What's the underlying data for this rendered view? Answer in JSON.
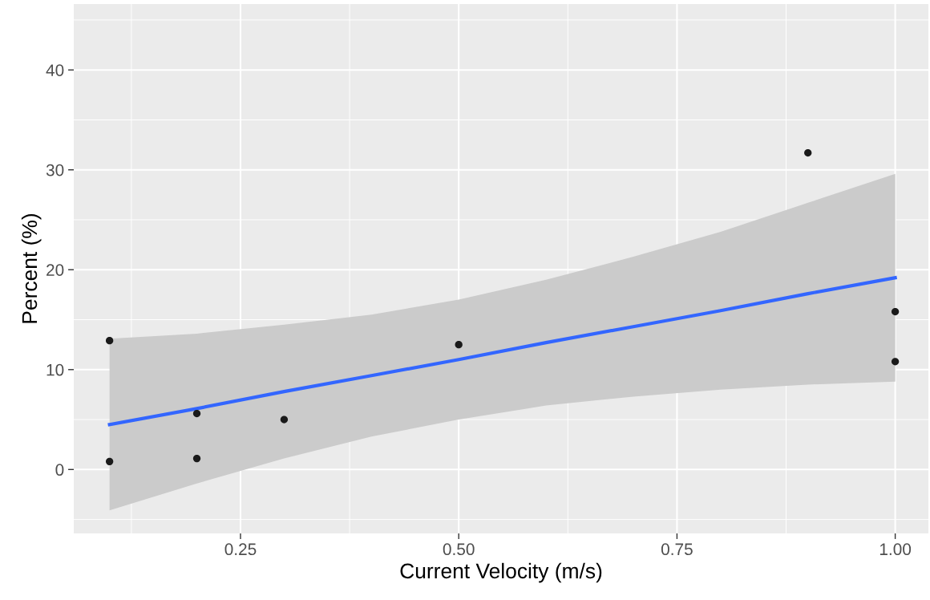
{
  "chart_data": {
    "type": "scatter",
    "xlabel": "Current Velocity (m/s)",
    "ylabel": "Percent (%)",
    "xlim": [
      0.059,
      1.038
    ],
    "ylim": [
      -6.4,
      46.6
    ],
    "xticks": [
      {
        "value": 0.25,
        "label": "0.25"
      },
      {
        "value": 0.5,
        "label": "0.50"
      },
      {
        "value": 0.75,
        "label": "0.75"
      },
      {
        "value": 1.0,
        "label": "1.00"
      }
    ],
    "yticks": [
      0,
      10,
      20,
      30,
      40
    ],
    "grid": true,
    "series": [
      {
        "marker": "circle",
        "color": "#1a1a1a",
        "x": [
          0.1,
          0.1,
          0.2,
          0.2,
          0.3,
          0.5,
          0.9,
          1.0,
          1.0
        ],
        "values": [
          12.9,
          0.8,
          5.6,
          1.1,
          5.0,
          12.5,
          31.7,
          15.8,
          10.8
        ]
      },
      {
        "type": "line",
        "marker": "none",
        "color": "#3366ff",
        "x": [
          0.1,
          0.2,
          0.3,
          0.4,
          0.5,
          0.6,
          0.7,
          0.8,
          0.9,
          1.0
        ],
        "values": [
          4.5,
          6.1,
          7.8,
          9.4,
          11.0,
          12.7,
          14.3,
          15.9,
          17.6,
          19.2
        ],
        "lower": [
          -4.1,
          -1.4,
          1.1,
          3.3,
          5.0,
          6.4,
          7.3,
          8.0,
          8.5,
          8.8
        ],
        "upper": [
          13.1,
          13.6,
          14.5,
          15.5,
          17.0,
          19.0,
          21.3,
          23.8,
          26.7,
          29.6
        ]
      }
    ]
  }
}
